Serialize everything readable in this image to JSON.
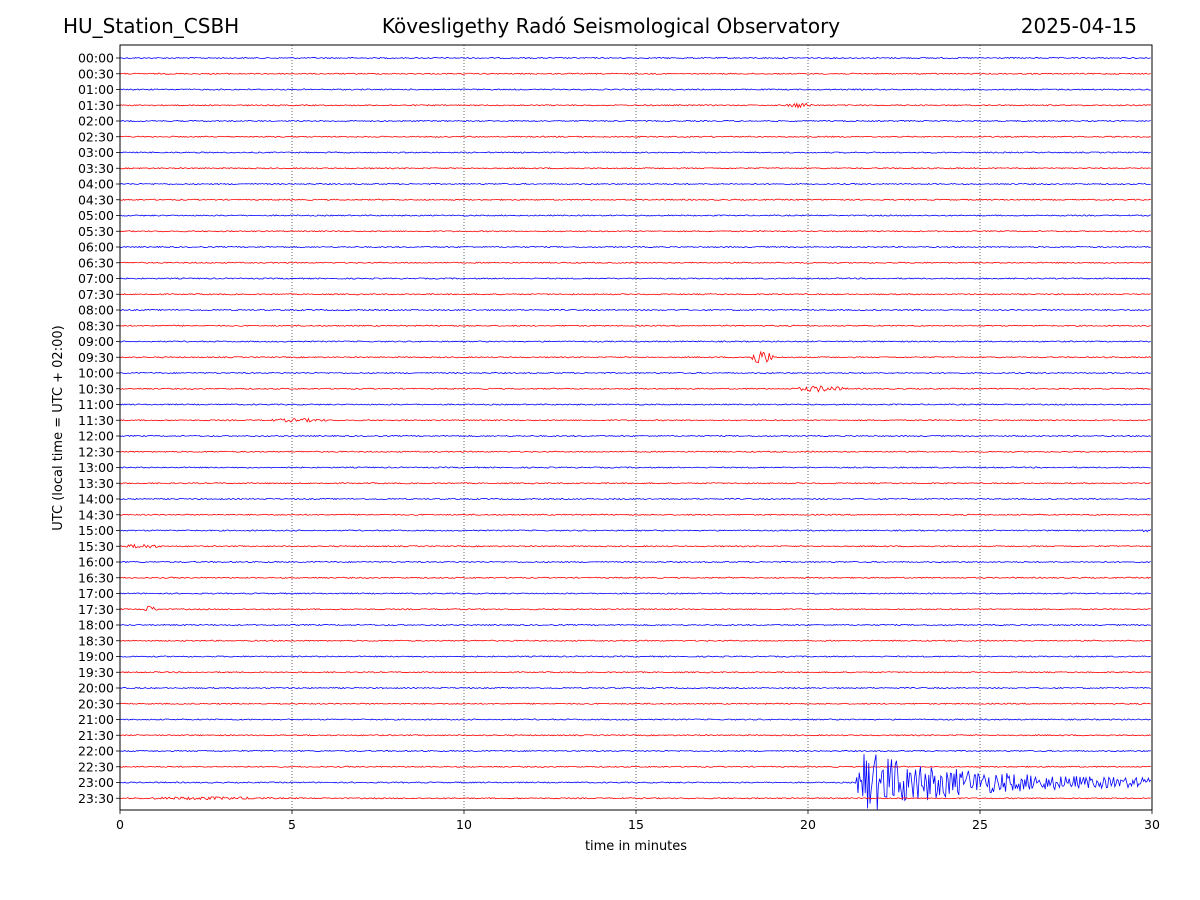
{
  "header": {
    "station": "HU_Station_CSBH",
    "observatory": "Kövesligethy Radó Seismological Observatory",
    "date": "2025-04-15"
  },
  "chart_data": {
    "type": "line",
    "title": "Kövesligethy Radó Seismological Observatory",
    "xlabel": "time in minutes",
    "ylabel": "UTC (local time = UTC + 02:00)",
    "xlim": [
      0,
      30
    ],
    "xticks": [
      "0",
      "5",
      "10",
      "15",
      "20",
      "25",
      "30"
    ],
    "vertical_gridlines_at_minutes": [
      5,
      10,
      15,
      20,
      25
    ],
    "grid": "vertical dotted",
    "trace_colors": [
      "#0000ff",
      "#ff0000"
    ],
    "series": [
      {
        "row_label": "00:00",
        "color": "#0000ff",
        "events": []
      },
      {
        "row_label": "00:30",
        "color": "#ff0000",
        "events": []
      },
      {
        "row_label": "01:00",
        "color": "#0000ff",
        "events": []
      },
      {
        "row_label": "01:30",
        "color": "#ff0000",
        "events": [
          {
            "start_min": 19.3,
            "end_min": 20.2,
            "amp": 0.25
          }
        ]
      },
      {
        "row_label": "02:00",
        "color": "#0000ff",
        "events": []
      },
      {
        "row_label": "02:30",
        "color": "#ff0000",
        "events": []
      },
      {
        "row_label": "03:00",
        "color": "#0000ff",
        "events": []
      },
      {
        "row_label": "03:30",
        "color": "#ff0000",
        "events": []
      },
      {
        "row_label": "04:00",
        "color": "#0000ff",
        "events": []
      },
      {
        "row_label": "04:30",
        "color": "#ff0000",
        "events": []
      },
      {
        "row_label": "05:00",
        "color": "#0000ff",
        "events": []
      },
      {
        "row_label": "05:30",
        "color": "#ff0000",
        "events": []
      },
      {
        "row_label": "06:00",
        "color": "#0000ff",
        "events": []
      },
      {
        "row_label": "06:30",
        "color": "#ff0000",
        "events": []
      },
      {
        "row_label": "07:00",
        "color": "#0000ff",
        "events": []
      },
      {
        "row_label": "07:30",
        "color": "#ff0000",
        "events": []
      },
      {
        "row_label": "08:00",
        "color": "#0000ff",
        "events": []
      },
      {
        "row_label": "08:30",
        "color": "#ff0000",
        "events": []
      },
      {
        "row_label": "09:00",
        "color": "#0000ff",
        "events": []
      },
      {
        "row_label": "09:30",
        "color": "#ff0000",
        "events": [
          {
            "start_min": 18.3,
            "end_min": 19.0,
            "amp": 0.75
          }
        ]
      },
      {
        "row_label": "10:00",
        "color": "#0000ff",
        "events": []
      },
      {
        "row_label": "10:30",
        "color": "#ff0000",
        "events": [
          {
            "start_min": 19.5,
            "end_min": 21.2,
            "amp": 0.3
          }
        ]
      },
      {
        "row_label": "11:00",
        "color": "#0000ff",
        "events": []
      },
      {
        "row_label": "11:30",
        "color": "#ff0000",
        "events": [
          {
            "start_min": 4.1,
            "end_min": 6.3,
            "amp": 0.18
          }
        ]
      },
      {
        "row_label": "12:00",
        "color": "#0000ff",
        "events": []
      },
      {
        "row_label": "12:30",
        "color": "#ff0000",
        "events": []
      },
      {
        "row_label": "13:00",
        "color": "#0000ff",
        "events": []
      },
      {
        "row_label": "13:30",
        "color": "#ff0000",
        "events": []
      },
      {
        "row_label": "14:00",
        "color": "#0000ff",
        "events": []
      },
      {
        "row_label": "14:30",
        "color": "#ff0000",
        "events": []
      },
      {
        "row_label": "15:00",
        "color": "#0000ff",
        "events": [
          {
            "start_min": 29.7,
            "end_min": 30.0,
            "amp": 0.3
          }
        ]
      },
      {
        "row_label": "15:30",
        "color": "#ff0000",
        "events": [
          {
            "start_min": 0.0,
            "end_min": 1.3,
            "amp": 0.22
          }
        ]
      },
      {
        "row_label": "16:00",
        "color": "#0000ff",
        "events": []
      },
      {
        "row_label": "16:30",
        "color": "#ff0000",
        "events": []
      },
      {
        "row_label": "17:00",
        "color": "#0000ff",
        "events": []
      },
      {
        "row_label": "17:30",
        "color": "#ff0000",
        "events": [
          {
            "start_min": 0.6,
            "end_min": 1.1,
            "amp": 0.35
          }
        ]
      },
      {
        "row_label": "18:00",
        "color": "#0000ff",
        "events": []
      },
      {
        "row_label": "18:30",
        "color": "#ff0000",
        "events": []
      },
      {
        "row_label": "19:00",
        "color": "#0000ff",
        "events": []
      },
      {
        "row_label": "19:30",
        "color": "#ff0000",
        "events": []
      },
      {
        "row_label": "20:00",
        "color": "#0000ff",
        "events": []
      },
      {
        "row_label": "20:30",
        "color": "#ff0000",
        "events": []
      },
      {
        "row_label": "21:00",
        "color": "#0000ff",
        "events": []
      },
      {
        "row_label": "21:30",
        "color": "#ff0000",
        "events": []
      },
      {
        "row_label": "22:00",
        "color": "#0000ff",
        "events": []
      },
      {
        "row_label": "22:30",
        "color": "#ff0000",
        "events": []
      },
      {
        "row_label": "23:00",
        "color": "#0000ff",
        "events": [
          {
            "start_min": 21.4,
            "end_min": 30.0,
            "amp": 3.5
          }
        ]
      },
      {
        "row_label": "23:30",
        "color": "#ff0000",
        "events": [
          {
            "start_min": 0.0,
            "end_min": 5.0,
            "amp": 0.15
          }
        ]
      }
    ]
  }
}
